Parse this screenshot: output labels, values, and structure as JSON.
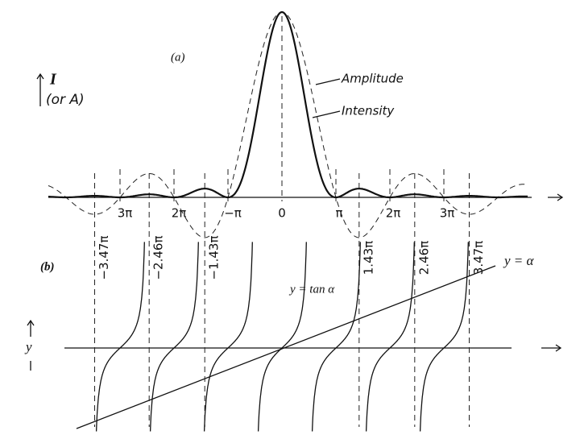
{
  "panel_a": {
    "label": "(a)",
    "y_axis_label": "I",
    "y_axis_sublabel": "(or A)",
    "curve_labels": [
      "Amplitude",
      "Intensity"
    ],
    "x_tick_labels": [
      "3π",
      "2π",
      "−π",
      "0",
      "π",
      "2π",
      "3π"
    ]
  },
  "panel_b": {
    "label": "(b)",
    "y_axis_label": "y",
    "line_label": "y = α",
    "curve_label": "y = tan α",
    "root_labels": [
      "−3.47π",
      "−2.46π",
      "−1.43π",
      "1.43π",
      "2.46π",
      "3.47π"
    ]
  }
}
